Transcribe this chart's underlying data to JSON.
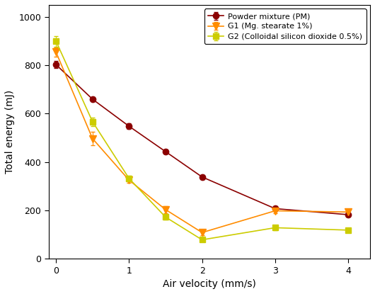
{
  "x": [
    0,
    0.5,
    1,
    1.5,
    2,
    3,
    4
  ],
  "PM_y": [
    803,
    660,
    548,
    443,
    338,
    207,
    182
  ],
  "PM_yerr": [
    15,
    10,
    12,
    10,
    8,
    10,
    8
  ],
  "G1_y": [
    855,
    497,
    325,
    203,
    108,
    198,
    193
  ],
  "G1_yerr": [
    20,
    28,
    12,
    15,
    12,
    10,
    12
  ],
  "G2_y": [
    900,
    567,
    332,
    172,
    78,
    128,
    118
  ],
  "G2_yerr": [
    22,
    18,
    10,
    10,
    8,
    10,
    8
  ],
  "PM_color": "#8B0000",
  "G1_color": "#FF8C00",
  "G2_color": "#CCCC00",
  "PM_label": "Powder mixture (PM)",
  "G1_label": "G1 (Mg. stearate 1%)",
  "G2_label": "G2 (Colloidal silicon dioxide 0.5%)",
  "xlabel": "Air velocity (mm/s)",
  "ylabel": "Total energy (mJ)",
  "xlim": [
    -0.1,
    4.3
  ],
  "ylim": [
    0,
    1050
  ],
  "yticks": [
    0,
    200,
    400,
    600,
    800,
    1000
  ],
  "xticks": [
    0,
    1,
    2,
    3,
    4
  ],
  "title_fontsize": 9,
  "axis_fontsize": 10,
  "tick_fontsize": 9,
  "legend_fontsize": 8
}
